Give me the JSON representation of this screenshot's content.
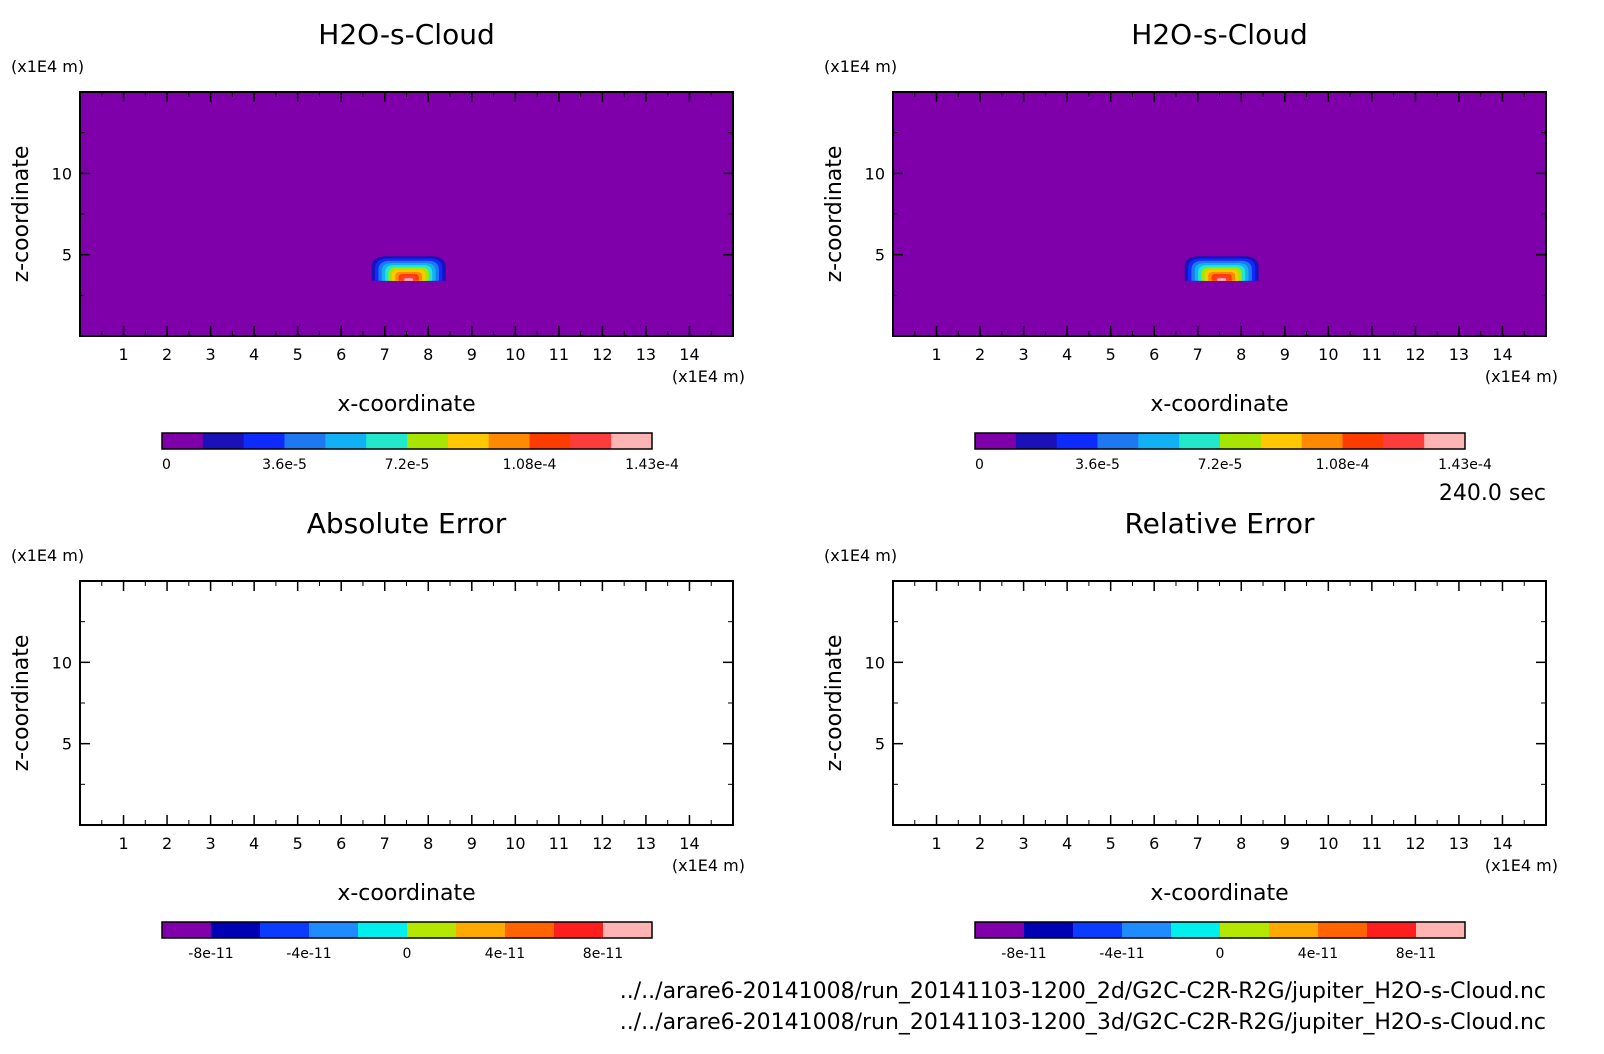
{
  "chart_data": [
    {
      "type": "heatmap",
      "title": "H2O-s-Cloud",
      "xlabel": "x-coordinate",
      "ylabel": "z-coordinate",
      "x_unit": "(x1E4 m)",
      "y_unit": "(x1E4 m)",
      "xlim": [
        0,
        15
      ],
      "ylim": [
        0,
        15
      ],
      "x_ticks": [
        "1",
        "2",
        "3",
        "4",
        "5",
        "6",
        "7",
        "8",
        "9",
        "10",
        "11",
        "12",
        "13",
        "14"
      ],
      "y_ticks": [
        "5",
        "10"
      ],
      "background_color": "#7f00aa",
      "feature": {
        "description_level": "cloud",
        "x_range": [
          6.7,
          8.4
        ],
        "z_range": [
          3.4,
          4.9
        ],
        "peak": 0.000143
      },
      "colorbar": {
        "colors": [
          "#7f00aa",
          "#1a12b8",
          "#0d2bff",
          "#1e78f0",
          "#12b0f5",
          "#22e8cc",
          "#a6e600",
          "#ffc800",
          "#ff8a00",
          "#ff3c00",
          "#ff3c3c",
          "#ffb4b4"
        ],
        "tick_labels": [
          "0",
          "3.6e-5",
          "7.2e-5",
          "1.08e-4",
          "1.43e-4"
        ]
      }
    },
    {
      "type": "heatmap",
      "title": "H2O-s-Cloud",
      "xlabel": "x-coordinate",
      "ylabel": "z-coordinate",
      "x_unit": "(x1E4 m)",
      "y_unit": "(x1E4 m)",
      "xlim": [
        0,
        15
      ],
      "ylim": [
        0,
        15
      ],
      "x_ticks": [
        "1",
        "2",
        "3",
        "4",
        "5",
        "6",
        "7",
        "8",
        "9",
        "10",
        "11",
        "12",
        "13",
        "14"
      ],
      "y_ticks": [
        "5",
        "10"
      ],
      "background_color": "#7f00aa",
      "feature": {
        "description_level": "cloud",
        "x_range": [
          6.7,
          8.4
        ],
        "z_range": [
          3.4,
          4.9
        ],
        "peak": 0.000143
      },
      "colorbar": {
        "colors": [
          "#7f00aa",
          "#1a12b8",
          "#0d2bff",
          "#1e78f0",
          "#12b0f5",
          "#22e8cc",
          "#a6e600",
          "#ffc800",
          "#ff8a00",
          "#ff3c00",
          "#ff3c3c",
          "#ffb4b4"
        ],
        "tick_labels": [
          "0",
          "3.6e-5",
          "7.2e-5",
          "1.08e-4",
          "1.43e-4"
        ]
      }
    },
    {
      "type": "heatmap",
      "title": "Absolute Error",
      "xlabel": "x-coordinate",
      "ylabel": "z-coordinate",
      "x_unit": "(x1E4 m)",
      "y_unit": "(x1E4 m)",
      "xlim": [
        0,
        15
      ],
      "ylim": [
        0,
        15
      ],
      "x_ticks": [
        "1",
        "2",
        "3",
        "4",
        "5",
        "6",
        "7",
        "8",
        "9",
        "10",
        "11",
        "12",
        "13",
        "14"
      ],
      "y_ticks": [
        "5",
        "10"
      ],
      "background_color": "#ffffff",
      "feature": null,
      "colorbar": {
        "colors": [
          "#7f00aa",
          "#0000b4",
          "#0a3cff",
          "#1e8cff",
          "#00f0f0",
          "#b4e600",
          "#ffaa00",
          "#ff6400",
          "#ff1e1e",
          "#ffb4b4"
        ],
        "tick_labels": [
          "-8e-11",
          "-4e-11",
          "0",
          "4e-11",
          "8e-11"
        ]
      }
    },
    {
      "type": "heatmap",
      "title": "Relative Error",
      "xlabel": "x-coordinate",
      "ylabel": "z-coordinate",
      "x_unit": "(x1E4 m)",
      "y_unit": "(x1E4 m)",
      "xlim": [
        0,
        15
      ],
      "ylim": [
        0,
        15
      ],
      "x_ticks": [
        "1",
        "2",
        "3",
        "4",
        "5",
        "6",
        "7",
        "8",
        "9",
        "10",
        "11",
        "12",
        "13",
        "14"
      ],
      "y_ticks": [
        "5",
        "10"
      ],
      "background_color": "#ffffff",
      "feature": null,
      "colorbar": {
        "colors": [
          "#7f00aa",
          "#0000b4",
          "#0a3cff",
          "#1e8cff",
          "#00f0f0",
          "#b4e600",
          "#ffaa00",
          "#ff6400",
          "#ff1e1e",
          "#ffb4b4"
        ],
        "tick_labels": [
          "-8e-11",
          "-4e-11",
          "0",
          "4e-11",
          "8e-11"
        ]
      }
    }
  ],
  "time_label": "240.0 sec",
  "file_paths": [
    "../../arare6-20141008/run_20141103-1200_2d/G2C-C2R-R2G/jupiter_H2O-s-Cloud.nc",
    "../../arare6-20141008/run_20141103-1200_3d/G2C-C2R-R2G/jupiter_H2O-s-Cloud.nc"
  ]
}
